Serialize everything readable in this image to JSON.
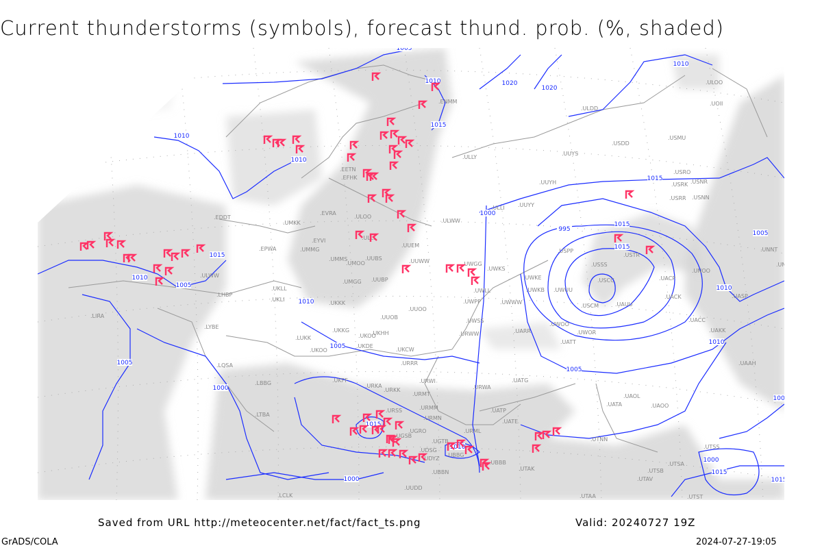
{
  "title": "Current thunderstorms (symbols), forecast thund. prob. (%, shaded)",
  "footer": {
    "saved_from": "Saved from URL http://meteocenter.net/fact/fact_ts.png",
    "valid": "Valid: 20240727 19Z",
    "software": "GrADS/COLA",
    "timestamp": "2024-07-27-19:05"
  },
  "colors": {
    "isobars": "#1a2cff",
    "thunderstorm_symbol": "#ff3366",
    "probability_shading": "#d4d4d4",
    "borders_and_stations": "#999999"
  },
  "legend": {
    "symbol": "thunderstorm-symbol",
    "shading": "forecast thunderstorm probability (%)"
  },
  "isobar_labels": [
    "1005",
    "1010",
    "1020",
    "1020",
    "1010",
    "1015",
    "1010",
    "1010",
    "1015",
    "1015",
    "1010",
    "1005",
    "1000",
    "995",
    "1015",
    "1015",
    "1010",
    "1005",
    "1000",
    "1005",
    "1005",
    "1010",
    "1010",
    "1005",
    "1000",
    "1005",
    "1015",
    "1010",
    "1000",
    "1015",
    "1015"
  ],
  "stations": [
    "ULOO",
    "UOII",
    "ULDD",
    "USDD",
    "USMU",
    "UUYS",
    "ULLY",
    "UUYH",
    "USRO",
    "USRK",
    "USNR",
    "USRR",
    "USNN",
    "UUYY",
    "ULLI",
    "ULWW",
    "EFHK",
    "EETN",
    "ULOO",
    "EVRA",
    "UMKK",
    "EDDT",
    "EPWA",
    "EYVI",
    "UMMG",
    "ULLL",
    "UMMS",
    "UMOO",
    "UUBS",
    "UUEM",
    "UUWW",
    "UWGG",
    "UWKS",
    "UWKE",
    "UWKB",
    "UWUU",
    "USPP",
    "USSS",
    "USTR",
    "USCC",
    "USCM",
    "UAUU",
    "UACP",
    "UACK",
    "UNOO",
    "UNNT",
    "UNBB",
    "UASP",
    "UACC",
    "UAKK",
    "UAAH",
    "UWOO",
    "UWOR",
    "UARR",
    "UATT",
    "UWWW",
    "UWLL",
    "UWPP",
    "UWSS",
    "URWW",
    "UMGG",
    "UUBP",
    "UKKK",
    "UUOO",
    "UUOB",
    "UKKG",
    "UKOO",
    "UKHH",
    "UKDE",
    "UKCW",
    "URRR",
    "ULWW",
    "LHBP",
    "UKLL",
    "UKLI",
    "LYBE",
    "LUKK",
    "UKOO",
    "LIRA",
    "LQSA",
    "LBBG",
    "LTBA",
    "UKFF",
    "URKA",
    "URKK",
    "URWI",
    "URMT",
    "URWA",
    "UATG",
    "URSS",
    "URMM",
    "URMN",
    "UATP",
    "UATE",
    "UGRO",
    "UGSB",
    "UGTB",
    "URML",
    "UDSG",
    "UBBG",
    "UBBB",
    "UTAK",
    "UBBN",
    "UDYZ",
    "UATA",
    "UAOL",
    "UAOO",
    "UTNN",
    "UTAA",
    "LCLK",
    "ENMM",
    "UUDD",
    "UTSA",
    "UTSB",
    "UTAV",
    "UTST",
    "UTSS"
  ]
}
